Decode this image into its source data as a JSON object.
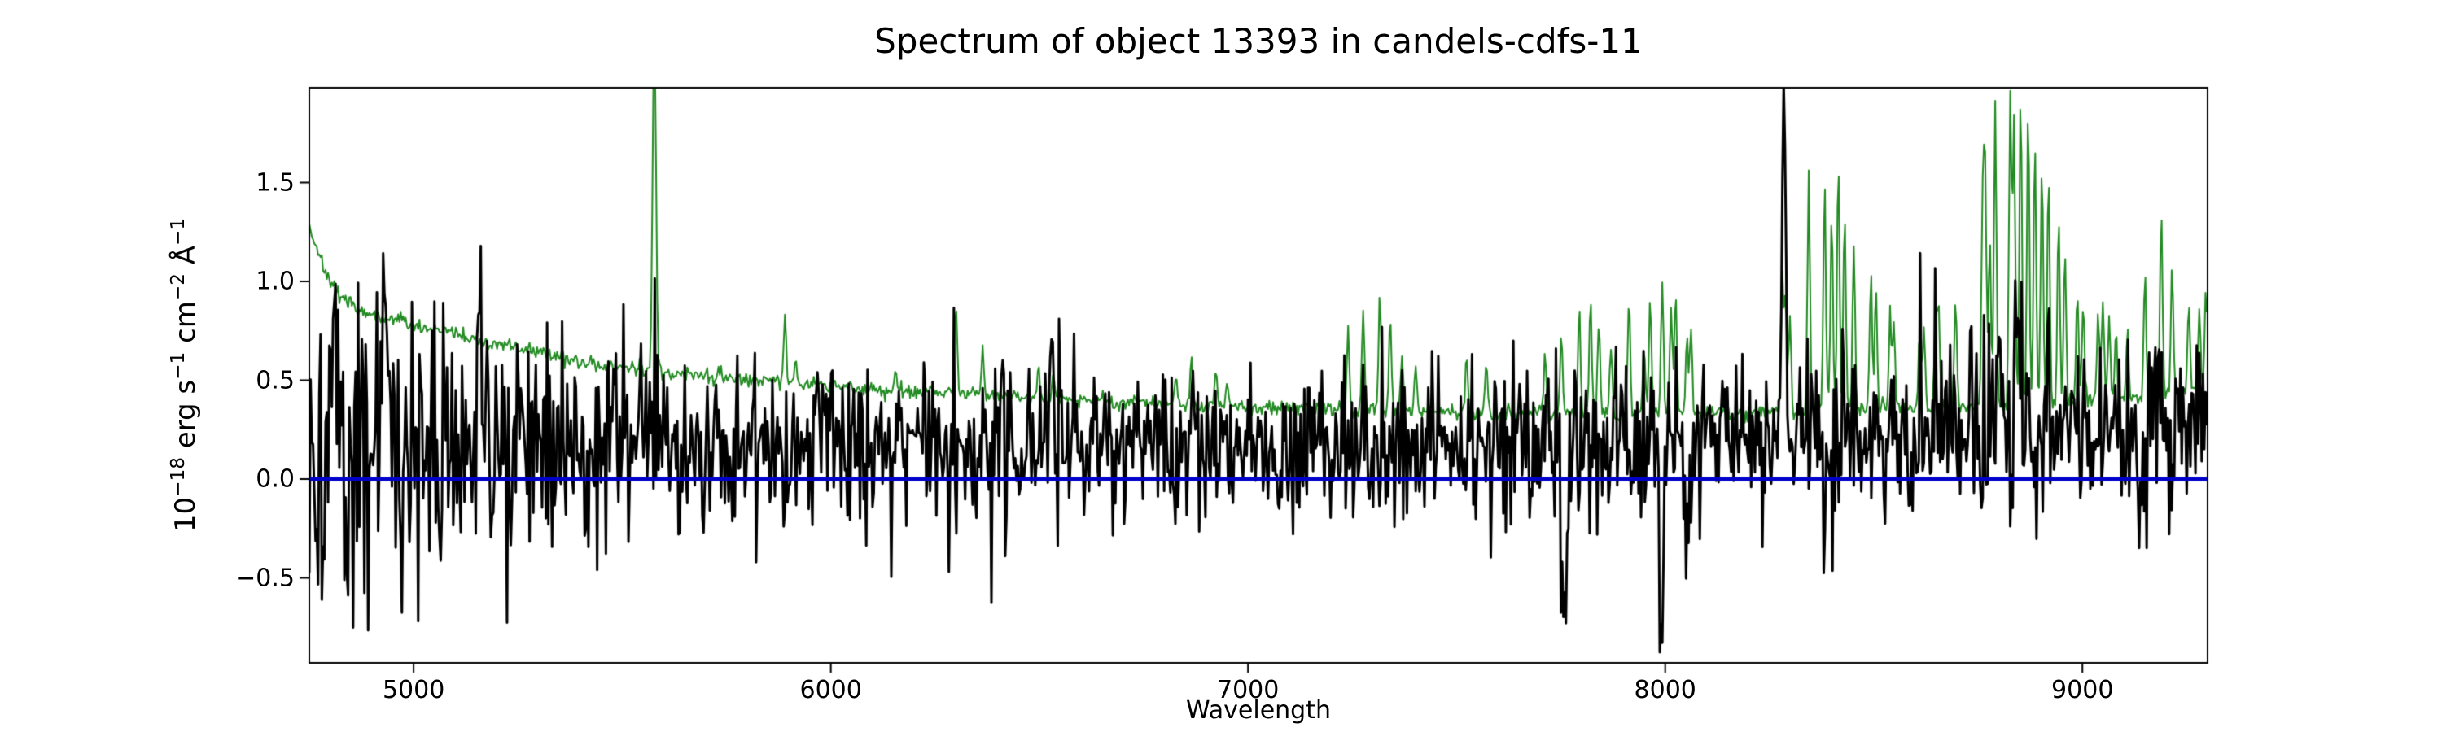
{
  "chart_data": {
    "type": "line",
    "title": "Spectrum of object 13393 in candels-cdfs-11",
    "xlabel": "Wavelength",
    "ylabel_segments": [
      {
        "t": "10"
      },
      {
        "t": "−18",
        "sup": true
      },
      {
        "t": " erg s"
      },
      {
        "t": "−1",
        "sup": true
      },
      {
        "t": " cm"
      },
      {
        "t": "−2",
        "sup": true
      },
      {
        "t": " Å"
      },
      {
        "t": "−1",
        "sup": true
      }
    ],
    "xlim": [
      4750,
      9300
    ],
    "ylim": [
      -0.93,
      1.98
    ],
    "xticks": [
      5000,
      6000,
      7000,
      8000,
      9000
    ],
    "yticks": [
      -0.5,
      0.0,
      0.5,
      1.0,
      1.5
    ],
    "ytick_labels": [
      "−0.5",
      "0.0",
      "0.5",
      "1.0",
      "1.5"
    ],
    "grid": false,
    "legend": "none",
    "background": "#ffffff",
    "axes_color": "#000000",
    "seed": 13393,
    "sampling_step": 3,
    "series": [
      {
        "name": "object-flux",
        "color": "#000000",
        "linewidth": 3,
        "role": "object spectrum (noisy)"
      },
      {
        "name": "noise-sky",
        "color": "#228b22",
        "linewidth": 2,
        "role": "noise / sky spectrum"
      },
      {
        "name": "zero-line",
        "color": "#0000cc",
        "linewidth": 5,
        "role": "zero flux baseline",
        "y": 0.0
      }
    ],
    "flux_baseline": [
      [
        4750,
        0.12
      ],
      [
        5000,
        0.16
      ],
      [
        5400,
        0.17
      ],
      [
        6000,
        0.16
      ],
      [
        6600,
        0.15
      ],
      [
        7200,
        0.15
      ],
      [
        7800,
        0.16
      ],
      [
        8400,
        0.2
      ],
      [
        8800,
        0.24
      ],
      [
        9300,
        0.25
      ]
    ],
    "flux_noise": {
      "base": 0.1,
      "sky_coupling": 0.28
    },
    "flux_features": [
      [
        4930,
        0.85,
        6
      ],
      [
        5160,
        0.45,
        5
      ],
      [
        5690,
        -0.55,
        4
      ],
      [
        6530,
        0.5,
        4
      ],
      [
        7758,
        -0.9,
        5
      ],
      [
        7988,
        -0.95,
        5
      ],
      [
        8055,
        -0.65,
        5
      ],
      [
        8285,
        1.5,
        5
      ],
      [
        8800,
        0.6,
        5
      ],
      [
        8848,
        0.8,
        5
      ],
      [
        9135,
        -0.55,
        5
      ]
    ],
    "sky_jitter": 0.02,
    "sky_envelope": [
      [
        4750,
        1.28
      ],
      [
        4800,
        0.98
      ],
      [
        4850,
        0.88
      ],
      [
        4950,
        0.8
      ],
      [
        5050,
        0.76
      ],
      [
        5200,
        0.68
      ],
      [
        5350,
        0.62
      ],
      [
        5500,
        0.56
      ],
      [
        5700,
        0.52
      ],
      [
        5900,
        0.49
      ],
      [
        6100,
        0.45
      ],
      [
        6300,
        0.44
      ],
      [
        6500,
        0.41
      ],
      [
        6700,
        0.39
      ],
      [
        6900,
        0.37
      ],
      [
        7100,
        0.36
      ],
      [
        7300,
        0.35
      ],
      [
        7500,
        0.34
      ],
      [
        7700,
        0.33
      ],
      [
        7900,
        0.33
      ],
      [
        8100,
        0.33
      ],
      [
        8300,
        0.34
      ],
      [
        8500,
        0.35
      ],
      [
        8700,
        0.36
      ],
      [
        8900,
        0.38
      ],
      [
        9100,
        0.4
      ],
      [
        9300,
        0.46
      ]
    ],
    "sky_lines": [
      [
        5577,
        1.75,
        4
      ],
      [
        5890,
        0.36,
        3
      ],
      [
        5915,
        0.12,
        3
      ],
      [
        6155,
        0.1,
        3
      ],
      [
        6300,
        0.43,
        3
      ],
      [
        6364,
        0.24,
        3
      ],
      [
        6498,
        0.14,
        3
      ],
      [
        6533,
        0.12,
        3
      ],
      [
        6827,
        0.16,
        3
      ],
      [
        6864,
        0.22,
        3
      ],
      [
        6923,
        0.17,
        3
      ],
      [
        6949,
        0.12,
        3
      ],
      [
        7240,
        0.42,
        3
      ],
      [
        7276,
        0.48,
        3
      ],
      [
        7316,
        0.55,
        3
      ],
      [
        7341,
        0.45,
        3
      ],
      [
        7369,
        0.28,
        3
      ],
      [
        7402,
        0.22,
        3
      ],
      [
        7524,
        0.28,
        3
      ],
      [
        7571,
        0.24,
        3
      ],
      [
        7712,
        0.3,
        3
      ],
      [
        7751,
        0.4,
        3
      ],
      [
        7794,
        0.52,
        3
      ],
      [
        7821,
        0.56,
        3
      ],
      [
        7841,
        0.48,
        3
      ],
      [
        7870,
        0.35,
        3
      ],
      [
        7913,
        0.6,
        3
      ],
      [
        7949,
        0.35,
        3
      ],
      [
        7964,
        0.62,
        3
      ],
      [
        7993,
        0.7,
        3
      ],
      [
        8014,
        0.55,
        3
      ],
      [
        8025,
        0.6,
        3
      ],
      [
        8052,
        0.4,
        3
      ],
      [
        8062,
        0.45,
        3
      ],
      [
        8280,
        0.72,
        3
      ],
      [
        8288,
        0.6,
        3
      ],
      [
        8299,
        0.5,
        3
      ],
      [
        8344,
        1.2,
        3
      ],
      [
        8382,
        1.15,
        3
      ],
      [
        8399,
        1.0,
        3
      ],
      [
        8415,
        1.25,
        3
      ],
      [
        8430,
        1.0,
        3
      ],
      [
        8452,
        0.85,
        3
      ],
      [
        8493,
        0.7,
        3
      ],
      [
        8505,
        0.62,
        3
      ],
      [
        8539,
        0.48,
        3
      ],
      [
        8548,
        0.42,
        3
      ],
      [
        8610,
        0.38,
        3
      ],
      [
        8620,
        0.42,
        3
      ],
      [
        8648,
        0.45,
        3
      ],
      [
        8655,
        0.5,
        3
      ],
      [
        8696,
        0.55,
        3
      ],
      [
        8761,
        1.05,
        3
      ],
      [
        8767,
        1.15,
        3
      ],
      [
        8778,
        0.85,
        3
      ],
      [
        8791,
        1.5,
        3
      ],
      [
        8827,
        1.58,
        3
      ],
      [
        8836,
        1.45,
        3
      ],
      [
        8852,
        1.55,
        3
      ],
      [
        8870,
        1.5,
        3
      ],
      [
        8886,
        1.35,
        3
      ],
      [
        8903,
        1.25,
        3
      ],
      [
        8919,
        1.15,
        3
      ],
      [
        8943,
        0.95,
        3
      ],
      [
        8958,
        0.75,
        3
      ],
      [
        8988,
        0.55,
        3
      ],
      [
        9002,
        0.5,
        3
      ],
      [
        9038,
        0.45,
        3
      ],
      [
        9049,
        0.5,
        3
      ],
      [
        9064,
        0.42,
        3
      ],
      [
        9080,
        0.38,
        3
      ],
      [
        9108,
        0.35,
        3
      ],
      [
        9150,
        0.6,
        3
      ],
      [
        9189,
        0.9,
        3
      ],
      [
        9215,
        0.62,
        3
      ],
      [
        9255,
        0.45,
        3
      ],
      [
        9280,
        0.4,
        3
      ],
      [
        9296,
        0.5,
        3
      ]
    ]
  }
}
